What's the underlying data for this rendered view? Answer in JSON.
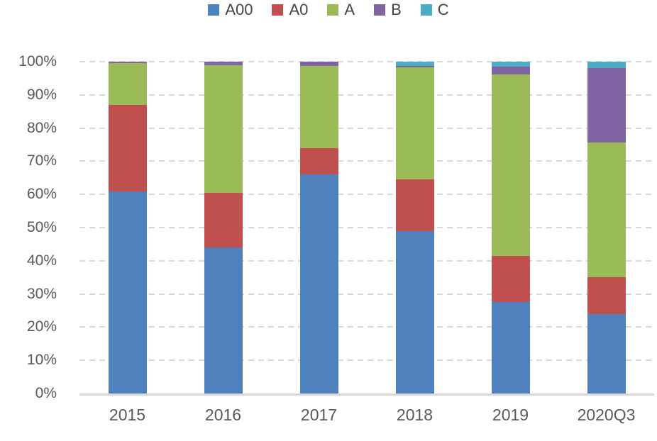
{
  "chart_data": {
    "type": "bar",
    "variant": "100%-stacked-column",
    "title": "",
    "categories": [
      "2015",
      "2016",
      "2017",
      "2018",
      "2019",
      "2020Q3"
    ],
    "series": [
      {
        "name": "A00",
        "color": "#4F81BD",
        "values": [
          61,
          44,
          66,
          49,
          27.5,
          24
        ]
      },
      {
        "name": "A0",
        "color": "#C0504D",
        "values": [
          26,
          16.5,
          8,
          15.5,
          14,
          11
        ]
      },
      {
        "name": "A",
        "color": "#9BBB59",
        "values": [
          12.5,
          38.5,
          24.7,
          33.8,
          54.7,
          40.6
        ]
      },
      {
        "name": "B",
        "color": "#8064A2",
        "values": [
          0.5,
          1,
          1.3,
          0.4,
          2.3,
          22.5
        ]
      },
      {
        "name": "C",
        "color": "#4BACC6",
        "values": [
          0,
          0,
          0,
          1.3,
          1.5,
          1.9
        ]
      }
    ],
    "y_axis": {
      "min": 0,
      "max": 100,
      "step": 10,
      "tick_labels": [
        "0%",
        "10%",
        "20%",
        "30%",
        "40%",
        "50%",
        "60%",
        "70%",
        "80%",
        "90%",
        "100%"
      ],
      "label_color": "#595959"
    },
    "x_axis": {
      "tick_labels": [
        "2015",
        "2016",
        "2017",
        "2018",
        "2019",
        "2020Q3"
      ],
      "label_color": "#595959",
      "axis_line_color": "#D9D9D9"
    },
    "legend": {
      "position": "top-center",
      "labels": [
        "A00",
        "A0",
        "A",
        "B",
        "C"
      ],
      "text_color": "#444444"
    },
    "grid": {
      "visible": true,
      "style": "dashed",
      "color": "#D9D9D9"
    }
  }
}
